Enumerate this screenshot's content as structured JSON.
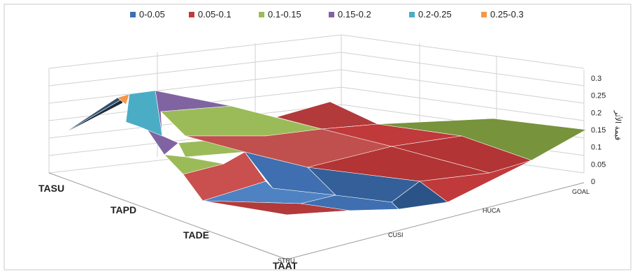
{
  "chart_data": {
    "type": "surface",
    "legend": {
      "position": "top",
      "items": [
        {
          "label": "0-0.05",
          "color": "#3f6fb0"
        },
        {
          "label": "0.05-0.1",
          "color": "#c0393b"
        },
        {
          "label": "0.1-0.15",
          "color": "#9bbb59"
        },
        {
          "label": "0.15-0.2",
          "color": "#8064a2"
        },
        {
          "label": "0.2-0.25",
          "color": "#4bacc6"
        },
        {
          "label": "0.25-0.3",
          "color": "#f79646"
        }
      ]
    },
    "z_axis": {
      "title": "قيمة الأثر",
      "ticks": [
        "0",
        "0.05",
        "0.1",
        "0.15",
        "0.2",
        "0.25",
        "0.3"
      ],
      "range": [
        0,
        0.3
      ]
    },
    "left_axis_categories": [
      "TASU",
      "TAPD",
      "TADE",
      "TAAT"
    ],
    "right_axis_categories": [
      "STRU",
      "CUSI",
      "HUCA",
      "GOAL"
    ],
    "grid": true
  }
}
